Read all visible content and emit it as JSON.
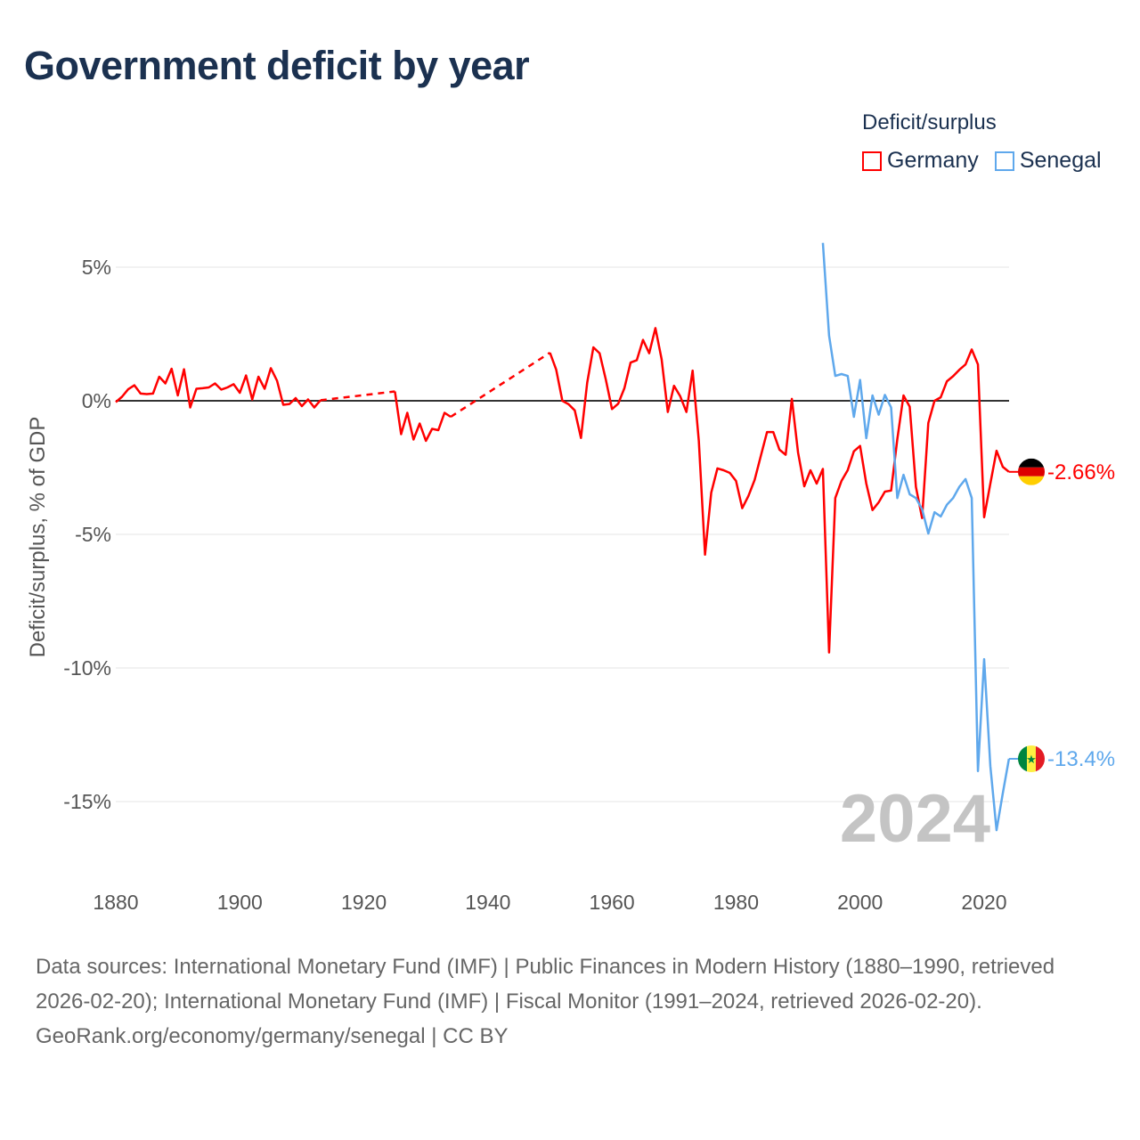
{
  "title": "Government deficit by year",
  "legend": {
    "title": "Deficit/surplus",
    "items": [
      {
        "label": "Germany",
        "color": "#ff0000"
      },
      {
        "label": "Senegal",
        "color": "#5fa8ec"
      }
    ]
  },
  "year_watermark": "2024",
  "footer": {
    "sources": "Data sources: International Monetary Fund (IMF) | Public Finances in Modern History (1880–1990, retrieved 2026-02-20); International Monetary Fund (IMF) | Fiscal Monitor (1991–2024, retrieved 2026-02-20).",
    "link": "GeoRank.org/economy/germany/senegal | CC BY"
  },
  "chart_data": {
    "type": "line",
    "title": "Government deficit by year",
    "xlabel": "",
    "ylabel": "Deficit/surplus, % of GDP",
    "xlim": [
      1880,
      2024
    ],
    "ylim": [
      -17,
      6
    ],
    "x_ticks": [
      1880,
      1900,
      1920,
      1940,
      1960,
      1980,
      2000,
      2020
    ],
    "x_tick_labels": [
      "1880",
      "1900",
      "1920",
      "1940",
      "1960",
      "1980",
      "2000",
      "2020"
    ],
    "y_ticks": [
      5,
      0,
      -5,
      -10,
      -15
    ],
    "y_tick_labels": [
      "5%",
      "0%",
      "-5%",
      "-10%",
      "-15%"
    ],
    "grid": true,
    "legend_placement": "top-right",
    "series": [
      {
        "name": "Germany",
        "color": "#ff0000",
        "end_label": "-2.66%",
        "points": [
          [
            1880,
            -0.05
          ],
          [
            1881,
            0.15
          ],
          [
            1882,
            0.43
          ],
          [
            1883,
            0.58
          ],
          [
            1884,
            0.27
          ],
          [
            1885,
            0.25
          ],
          [
            1886,
            0.27
          ],
          [
            1887,
            0.9
          ],
          [
            1888,
            0.65
          ],
          [
            1889,
            1.2
          ],
          [
            1890,
            0.2
          ],
          [
            1891,
            1.18
          ],
          [
            1892,
            -0.25
          ],
          [
            1893,
            0.45
          ],
          [
            1894,
            0.47
          ],
          [
            1895,
            0.5
          ],
          [
            1896,
            0.65
          ],
          [
            1897,
            0.42
          ],
          [
            1898,
            0.5
          ],
          [
            1899,
            0.62
          ],
          [
            1900,
            0.3
          ],
          [
            1901,
            0.95
          ],
          [
            1902,
            0.05
          ],
          [
            1903,
            0.9
          ],
          [
            1904,
            0.45
          ],
          [
            1905,
            1.22
          ],
          [
            1906,
            0.75
          ],
          [
            1907,
            -0.15
          ],
          [
            1908,
            -0.12
          ],
          [
            1909,
            0.1
          ],
          [
            1910,
            -0.2
          ],
          [
            1911,
            0.05
          ],
          [
            1912,
            -0.25
          ],
          [
            1913,
            0.02
          ],
          [
            1925,
            0.35
          ],
          [
            1926,
            -1.25
          ],
          [
            1927,
            -0.45
          ],
          [
            1928,
            -1.45
          ],
          [
            1929,
            -0.85
          ],
          [
            1930,
            -1.5
          ],
          [
            1931,
            -1.05
          ],
          [
            1932,
            -1.1
          ],
          [
            1933,
            -0.45
          ],
          [
            1934,
            -0.6
          ],
          [
            1950,
            1.8
          ],
          [
            1951,
            1.17
          ],
          [
            1952,
            0.0
          ],
          [
            1953,
            -0.13
          ],
          [
            1954,
            -0.36
          ],
          [
            1955,
            -1.39
          ],
          [
            1956,
            0.67
          ],
          [
            1957,
            2.0
          ],
          [
            1958,
            1.78
          ],
          [
            1959,
            0.8
          ],
          [
            1960,
            -0.31
          ],
          [
            1961,
            -0.11
          ],
          [
            1962,
            0.47
          ],
          [
            1963,
            1.43
          ],
          [
            1964,
            1.52
          ],
          [
            1965,
            2.28
          ],
          [
            1966,
            1.78
          ],
          [
            1967,
            2.72
          ],
          [
            1968,
            1.56
          ],
          [
            1969,
            -0.42
          ],
          [
            1970,
            0.56
          ],
          [
            1971,
            0.17
          ],
          [
            1972,
            -0.42
          ],
          [
            1973,
            1.13
          ],
          [
            1974,
            -1.5
          ],
          [
            1975,
            -5.76
          ],
          [
            1976,
            -3.44
          ],
          [
            1977,
            -2.53
          ],
          [
            1978,
            -2.6
          ],
          [
            1979,
            -2.7
          ],
          [
            1980,
            -3.0
          ],
          [
            1981,
            -4.02
          ],
          [
            1982,
            -3.56
          ],
          [
            1983,
            -2.96
          ],
          [
            1984,
            -2.06
          ],
          [
            1985,
            -1.17
          ],
          [
            1986,
            -1.17
          ],
          [
            1987,
            -1.83
          ],
          [
            1988,
            -2.02
          ],
          [
            1989,
            0.07
          ],
          [
            1990,
            -1.94
          ],
          [
            1991,
            -3.2
          ],
          [
            1992,
            -2.6
          ],
          [
            1993,
            -3.1
          ],
          [
            1994,
            -2.55
          ],
          [
            1995,
            -9.42
          ],
          [
            1996,
            -3.64
          ],
          [
            1997,
            -3.0
          ],
          [
            1998,
            -2.6
          ],
          [
            1999,
            -1.89
          ],
          [
            2000,
            -1.69
          ],
          [
            2001,
            -3.1
          ],
          [
            2002,
            -4.09
          ],
          [
            2003,
            -3.8
          ],
          [
            2004,
            -3.4
          ],
          [
            2005,
            -3.36
          ],
          [
            2006,
            -1.44
          ],
          [
            2007,
            0.2
          ],
          [
            2008,
            -0.22
          ],
          [
            2009,
            -3.22
          ],
          [
            2010,
            -4.39
          ],
          [
            2011,
            -0.83
          ],
          [
            2012,
            0.0
          ],
          [
            2013,
            0.13
          ],
          [
            2014,
            0.73
          ],
          [
            2015,
            0.92
          ],
          [
            2016,
            1.16
          ],
          [
            2017,
            1.36
          ],
          [
            2018,
            1.92
          ],
          [
            2019,
            1.36
          ],
          [
            2020,
            -4.36
          ],
          [
            2021,
            -3.1
          ],
          [
            2022,
            -1.87
          ],
          [
            2023,
            -2.47
          ],
          [
            2024,
            -2.66
          ]
        ]
      },
      {
        "name": "Senegal",
        "color": "#5fa8ec",
        "end_label": "-13.4%",
        "points": [
          [
            1994,
            5.91
          ],
          [
            1995,
            2.44
          ],
          [
            1996,
            0.93
          ],
          [
            1997,
            1.0
          ],
          [
            1998,
            0.93
          ],
          [
            1999,
            -0.6
          ],
          [
            2000,
            0.78
          ],
          [
            2001,
            -1.4
          ],
          [
            2002,
            0.2
          ],
          [
            2003,
            -0.52
          ],
          [
            2004,
            0.22
          ],
          [
            2005,
            -0.25
          ],
          [
            2006,
            -3.64
          ],
          [
            2007,
            -2.77
          ],
          [
            2008,
            -3.5
          ],
          [
            2009,
            -3.64
          ],
          [
            2010,
            -4.06
          ],
          [
            2011,
            -4.97
          ],
          [
            2012,
            -4.17
          ],
          [
            2013,
            -4.33
          ],
          [
            2014,
            -3.89
          ],
          [
            2015,
            -3.64
          ],
          [
            2016,
            -3.22
          ],
          [
            2017,
            -2.93
          ],
          [
            2018,
            -3.64
          ],
          [
            2019,
            -13.86
          ],
          [
            2020,
            -9.67
          ],
          [
            2021,
            -13.67
          ],
          [
            2022,
            -16.07
          ],
          [
            2023,
            -14.7
          ],
          [
            2024,
            -13.4
          ]
        ]
      }
    ]
  }
}
